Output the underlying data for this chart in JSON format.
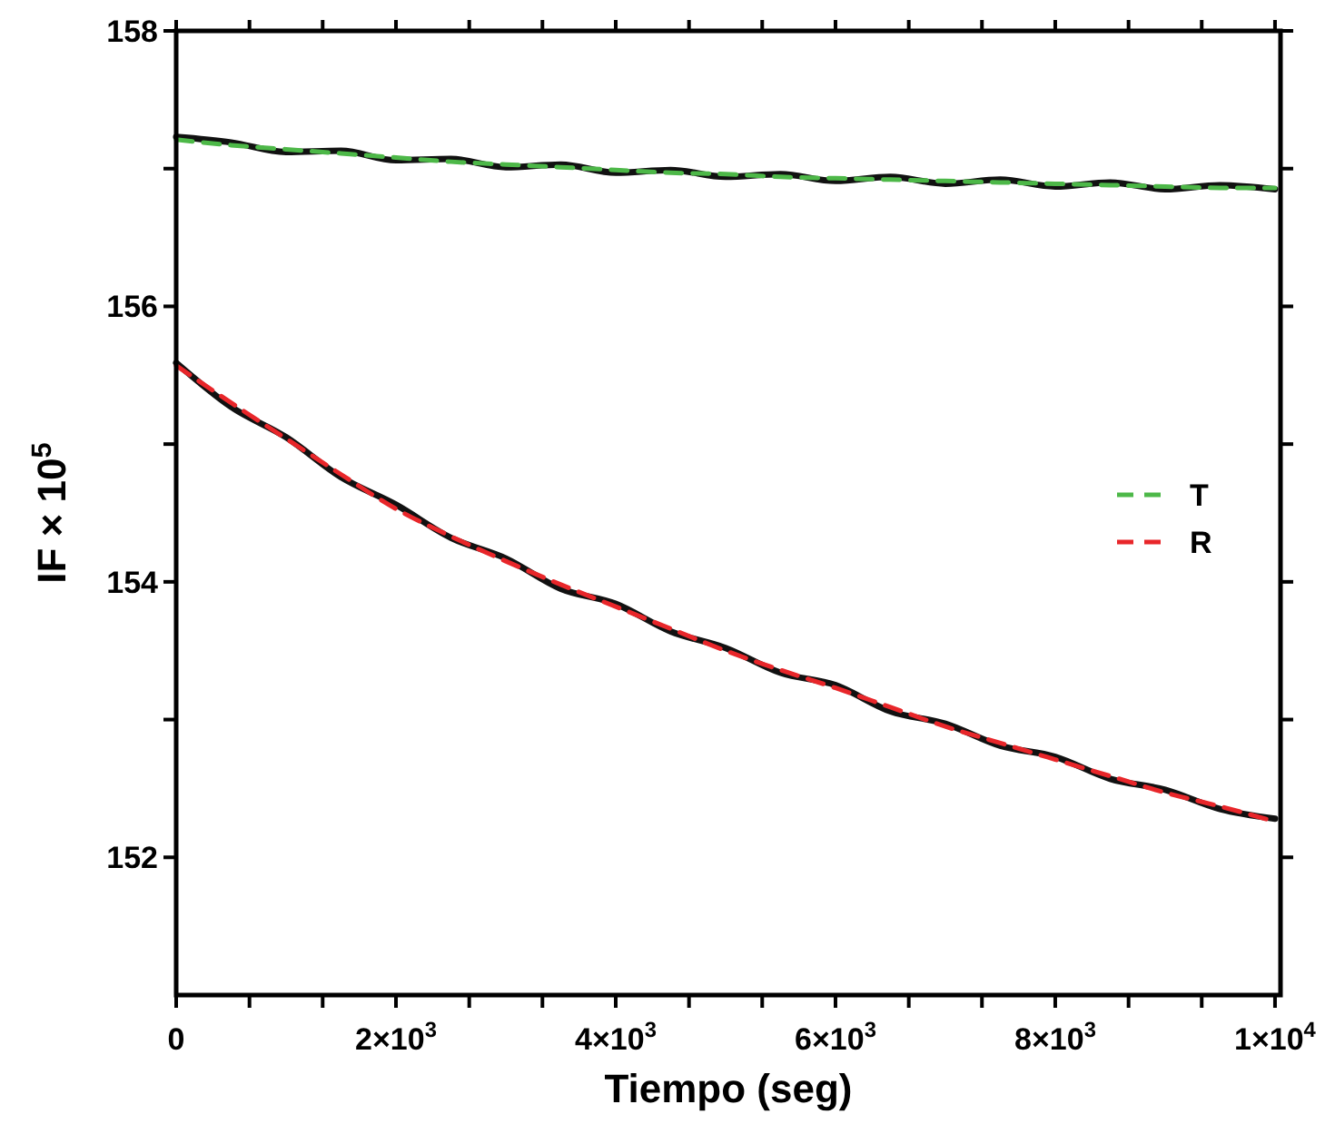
{
  "chart_data": {
    "type": "line",
    "xlabel": "Tiempo (seg)",
    "ylabel": "IF × 10$^{5}$",
    "x": [
      0,
      500,
      1000,
      1500,
      2000,
      2500,
      3000,
      3500,
      4000,
      4500,
      5000,
      5500,
      6000,
      6500,
      7000,
      7500,
      8000,
      8500,
      9000,
      9500,
      10000
    ],
    "series": [
      {
        "color": "#111111",
        "line_style": "solid",
        "values": [
          157.23,
          157.19,
          157.12,
          157.13,
          157.06,
          157.07,
          157.01,
          157.03,
          156.97,
          156.99,
          156.94,
          156.96,
          156.91,
          156.94,
          156.89,
          156.92,
          156.87,
          156.9,
          156.85,
          156.88,
          156.85
        ]
      },
      {
        "color": "#111111",
        "line_style": "solid",
        "values": [
          155.59,
          155.27,
          155.05,
          154.76,
          154.56,
          154.32,
          154.17,
          153.95,
          153.84,
          153.64,
          153.52,
          153.34,
          153.25,
          153.06,
          152.97,
          152.81,
          152.73,
          152.57,
          152.49,
          152.35,
          152.28
        ]
      },
      {
        "name": "T",
        "color": "#4db848",
        "line_style": "dashed",
        "values": [
          157.21,
          157.17,
          157.14,
          157.11,
          157.08,
          157.05,
          157.03,
          157.01,
          156.99,
          156.97,
          156.96,
          156.94,
          156.93,
          156.92,
          156.91,
          156.9,
          156.89,
          156.88,
          156.87,
          156.86,
          156.86
        ]
      },
      {
        "name": "R",
        "color": "#e8262a",
        "line_style": "dashed",
        "values": [
          155.57,
          155.3,
          155.04,
          154.78,
          154.53,
          154.33,
          154.15,
          153.98,
          153.82,
          153.66,
          153.5,
          153.36,
          153.23,
          153.09,
          152.95,
          152.83,
          152.71,
          152.59,
          152.47,
          152.37,
          152.26
        ]
      }
    ],
    "xlim": [
      0,
      10050
    ],
    "xticks": [
      0,
      {
        "value": 667,
        "label": null
      },
      {
        "value": 1333,
        "label": null
      },
      {
        "value": 2000,
        "label": "2×10$^{3}$"
      },
      {
        "value": 2667,
        "label": null
      },
      {
        "value": 3333,
        "label": null
      },
      {
        "value": 4000,
        "label": "4×10$^{3}$"
      },
      {
        "value": 4667,
        "label": null
      },
      {
        "value": 5333,
        "label": null
      },
      {
        "value": 6000,
        "label": "6×10$^{3}$"
      },
      {
        "value": 6667,
        "label": null
      },
      {
        "value": 7333,
        "label": null
      },
      {
        "value": 8000,
        "label": "8×10$^{3}$"
      },
      {
        "value": 8667,
        "label": null
      },
      {
        "value": 9333,
        "label": null
      },
      {
        "value": 10000,
        "label": "1×10$^{4}$"
      }
    ],
    "ylim": [
      151,
      158
    ],
    "yticks": [
      152,
      {
        "value": 153,
        "label": null
      },
      154,
      {
        "value": 155,
        "label": null
      },
      156,
      {
        "value": 157,
        "label": null
      },
      158
    ],
    "grid": false,
    "legend": "right"
  }
}
